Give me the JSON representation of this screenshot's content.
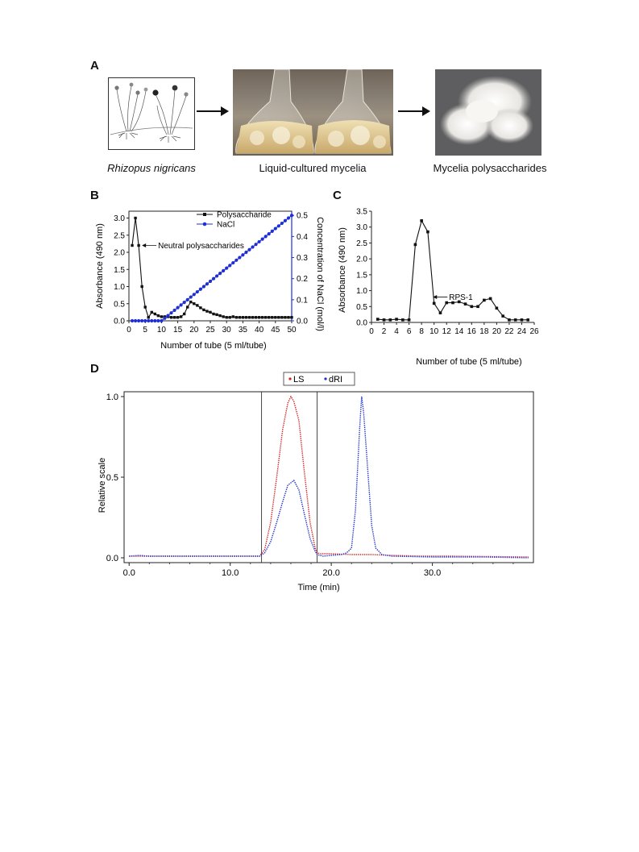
{
  "panel_a": {
    "letter": "A",
    "captions": [
      "Rhizopus nigricans",
      "Liquid-cultured mycelia",
      "Mycelia polysaccharides"
    ]
  },
  "panel_b": {
    "letter": "B"
  },
  "panel_c": {
    "letter": "C"
  },
  "panel_d": {
    "letter": "D"
  },
  "chart_data": [
    {
      "id": "B",
      "type": "line",
      "xlabel": "Number of tube (5 ml/tube)",
      "ylabel": "Absorbance (490 nm)",
      "y2label": "Concentration of NaCl (mol/l)",
      "xlim": [
        0,
        50
      ],
      "ylim": [
        0,
        3.2
      ],
      "y2lim": [
        0,
        0.52
      ],
      "xticks": [
        0,
        5,
        10,
        15,
        20,
        25,
        30,
        35,
        40,
        45,
        50
      ],
      "yticks": [
        0.0,
        0.5,
        1.0,
        1.5,
        2.0,
        2.5,
        3.0
      ],
      "ytick_labels": [
        "0.0",
        "0.5",
        "1.0",
        "1.5",
        "2.0",
        "2.5",
        "3.0"
      ],
      "y2ticks": [
        0.0,
        0.1,
        0.2,
        0.3,
        0.4,
        0.5
      ],
      "y2tick_labels": [
        "0.0",
        "0.1",
        "0.2",
        "0.3",
        "0.4",
        "0.5"
      ],
      "legend_position": "top-right",
      "annotation": "Neutral polysaccharides",
      "series": [
        {
          "name": "Polysaccharide",
          "color": "#111111",
          "axis": "left",
          "x": [
            1,
            2,
            3,
            4,
            5,
            6,
            7,
            8,
            9,
            10,
            11,
            12,
            13,
            14,
            15,
            16,
            17,
            18,
            19,
            20,
            21,
            22,
            23,
            24,
            25,
            26,
            27,
            28,
            29,
            30,
            31,
            32,
            33,
            34,
            35,
            36,
            37,
            38,
            39,
            40,
            41,
            42,
            43,
            44,
            45,
            46,
            47,
            48,
            49,
            50
          ],
          "values": [
            2.2,
            3.0,
            2.2,
            1.0,
            0.4,
            0.1,
            0.25,
            0.2,
            0.15,
            0.12,
            0.12,
            0.12,
            0.1,
            0.1,
            0.1,
            0.12,
            0.2,
            0.4,
            0.55,
            0.5,
            0.45,
            0.38,
            0.32,
            0.28,
            0.25,
            0.2,
            0.18,
            0.15,
            0.12,
            0.1,
            0.1,
            0.12,
            0.1,
            0.1,
            0.1,
            0.1,
            0.1,
            0.1,
            0.1,
            0.1,
            0.1,
            0.1,
            0.1,
            0.1,
            0.1,
            0.1,
            0.1,
            0.1,
            0.1,
            0.1
          ]
        },
        {
          "name": "NaCl",
          "color": "#1f2fd6",
          "axis": "right",
          "x": [
            1,
            2,
            3,
            4,
            5,
            6,
            7,
            8,
            9,
            10,
            11,
            12,
            13,
            14,
            15,
            16,
            17,
            18,
            19,
            20,
            21,
            22,
            23,
            24,
            25,
            26,
            27,
            28,
            29,
            30,
            31,
            32,
            33,
            34,
            35,
            36,
            37,
            38,
            39,
            40,
            41,
            42,
            43,
            44,
            45,
            46,
            47,
            48,
            49,
            50
          ],
          "values": [
            0,
            0,
            0,
            0,
            0,
            0,
            0,
            0,
            0,
            0,
            0.0125,
            0.025,
            0.0375,
            0.05,
            0.0625,
            0.075,
            0.0875,
            0.1,
            0.1125,
            0.125,
            0.1375,
            0.15,
            0.1625,
            0.175,
            0.1875,
            0.2,
            0.2125,
            0.225,
            0.2375,
            0.25,
            0.2625,
            0.275,
            0.2875,
            0.3,
            0.3125,
            0.325,
            0.3375,
            0.35,
            0.3625,
            0.375,
            0.3875,
            0.4,
            0.4125,
            0.425,
            0.4375,
            0.45,
            0.4625,
            0.475,
            0.4875,
            0.5
          ]
        }
      ]
    },
    {
      "id": "C",
      "type": "line",
      "xlabel": "Number of tube (5 ml/tube)",
      "ylabel": "Absorbance (490 nm)",
      "xlim": [
        0,
        26
      ],
      "ylim": [
        0,
        3.5
      ],
      "xticks": [
        0,
        2,
        4,
        6,
        8,
        10,
        12,
        14,
        16,
        18,
        20,
        22,
        24,
        26
      ],
      "yticks": [
        0.0,
        0.5,
        1.0,
        1.5,
        2.0,
        2.5,
        3.0,
        3.5
      ],
      "ytick_labels": [
        "0.0",
        "0.5",
        "1.0",
        "1.5",
        "2.0",
        "2.5",
        "3.0",
        "3.5"
      ],
      "annotation": "RPS-1",
      "series": [
        {
          "color": "#111111",
          "x": [
            1,
            2,
            3,
            4,
            5,
            6,
            7,
            8,
            9,
            10,
            11,
            12,
            13,
            14,
            15,
            16,
            17,
            18,
            19,
            20,
            21,
            22,
            23,
            24,
            25
          ],
          "values": [
            0.1,
            0.08,
            0.08,
            0.1,
            0.08,
            0.08,
            2.45,
            3.2,
            2.85,
            0.6,
            0.3,
            0.62,
            0.62,
            0.65,
            0.58,
            0.5,
            0.5,
            0.7,
            0.75,
            0.45,
            0.2,
            0.08,
            0.08,
            0.08,
            0.08
          ]
        }
      ]
    },
    {
      "id": "D",
      "type": "line",
      "xlabel": "Time (min)",
      "ylabel": "Relative scale",
      "xlim": [
        -0.5,
        40
      ],
      "ylim": [
        -0.03,
        1.03
      ],
      "xticks": [
        0,
        10,
        20,
        30
      ],
      "xtick_labels": [
        "0.0",
        "10.0",
        "20.0",
        "30.0"
      ],
      "yticks": [
        0.0,
        0.5,
        1.0
      ],
      "ytick_labels": [
        "0.0",
        "0.5",
        "1.0"
      ],
      "vlines": [
        13.1,
        18.6
      ],
      "legend_position": "top-center",
      "series": [
        {
          "name": "LS",
          "color": "#d42020",
          "x": [
            0,
            12.9,
            13.4,
            14.0,
            14.6,
            15.2,
            15.7,
            16.0,
            16.3,
            16.8,
            17.3,
            17.9,
            18.4,
            18.6,
            19.0,
            20,
            22,
            24,
            26,
            29,
            32,
            35,
            38,
            39.5
          ],
          "values": [
            0.01,
            0.01,
            0.05,
            0.22,
            0.5,
            0.8,
            0.96,
            1.0,
            0.97,
            0.85,
            0.55,
            0.22,
            0.06,
            0.03,
            0.025,
            0.025,
            0.02,
            0.02,
            0.015,
            0.01,
            0.01,
            0.008,
            0.006,
            0.005
          ]
        },
        {
          "name": "dRI",
          "color": "#2030d0",
          "x": [
            0,
            1,
            2,
            8,
            12.9,
            13.4,
            14.0,
            14.6,
            15.2,
            15.7,
            16.3,
            16.8,
            17.3,
            17.9,
            18.4,
            18.6,
            19.2,
            20.0,
            21.0,
            21.5,
            22.0,
            22.4,
            22.8,
            23.0,
            23.2,
            23.6,
            24.0,
            24.4,
            25.0,
            26,
            30,
            35,
            39.5
          ],
          "values": [
            0.01,
            0.015,
            0.01,
            0.01,
            0.01,
            0.03,
            0.1,
            0.22,
            0.35,
            0.45,
            0.48,
            0.42,
            0.28,
            0.12,
            0.04,
            0.02,
            0.01,
            0.015,
            0.02,
            0.03,
            0.06,
            0.3,
            0.8,
            1.0,
            0.9,
            0.55,
            0.2,
            0.06,
            0.02,
            0.01,
            0.005,
            0.005,
            0.0
          ]
        }
      ]
    }
  ]
}
